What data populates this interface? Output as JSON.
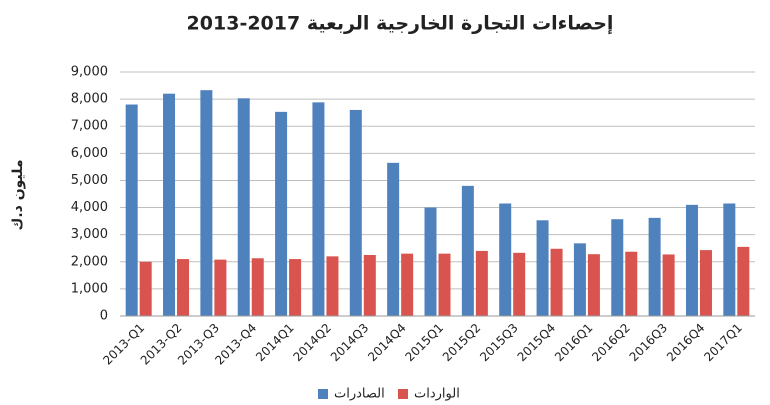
{
  "chart_data": {
    "type": "bar",
    "title": "إحصاءات التجارة الخارجية الربعية 2017-2013",
    "y_label": "مليون د.ك",
    "categories": [
      "2013-Q1",
      "2013-Q2",
      "2013-Q3",
      "2013-Q4",
      "2014Q1",
      "2014Q2",
      "2014Q3",
      "2014Q4",
      "2015Q1",
      "2015Q2",
      "2015Q3",
      "2015Q4",
      "2016Q1",
      "2016Q2",
      "2016Q3",
      "2016Q4",
      "2017Q1"
    ],
    "series": [
      {
        "name": "الصادرات",
        "color": "#4f81bd",
        "values": [
          7800,
          8200,
          8330,
          8030,
          7530,
          7880,
          7600,
          5650,
          4000,
          4800,
          4150,
          3530,
          2680,
          3570,
          3620,
          4100,
          4150
        ]
      },
      {
        "name": "الواردات",
        "color": "#d9534f",
        "values": [
          2000,
          2100,
          2080,
          2130,
          2100,
          2200,
          2250,
          2300,
          2300,
          2400,
          2330,
          2480,
          2280,
          2370,
          2270,
          2430,
          2550
        ]
      }
    ],
    "ylim": [
      0,
      9000
    ],
    "yticks": [
      0,
      {
        "value": 1000,
        "label": "1,000"
      },
      {
        "value": 2000,
        "label": "2,000"
      },
      {
        "value": 3000,
        "label": "3,000"
      },
      {
        "value": 4000,
        "label": "4,000"
      },
      {
        "value": 5000,
        "label": "5,000"
      },
      {
        "value": 6000,
        "label": "6,000"
      },
      {
        "value": 7000,
        "label": "7,000"
      },
      {
        "value": 8000,
        "label": "8,000"
      },
      {
        "value": 9000,
        "label": "9,000"
      }
    ],
    "grid": true,
    "legend": "bottom"
  }
}
